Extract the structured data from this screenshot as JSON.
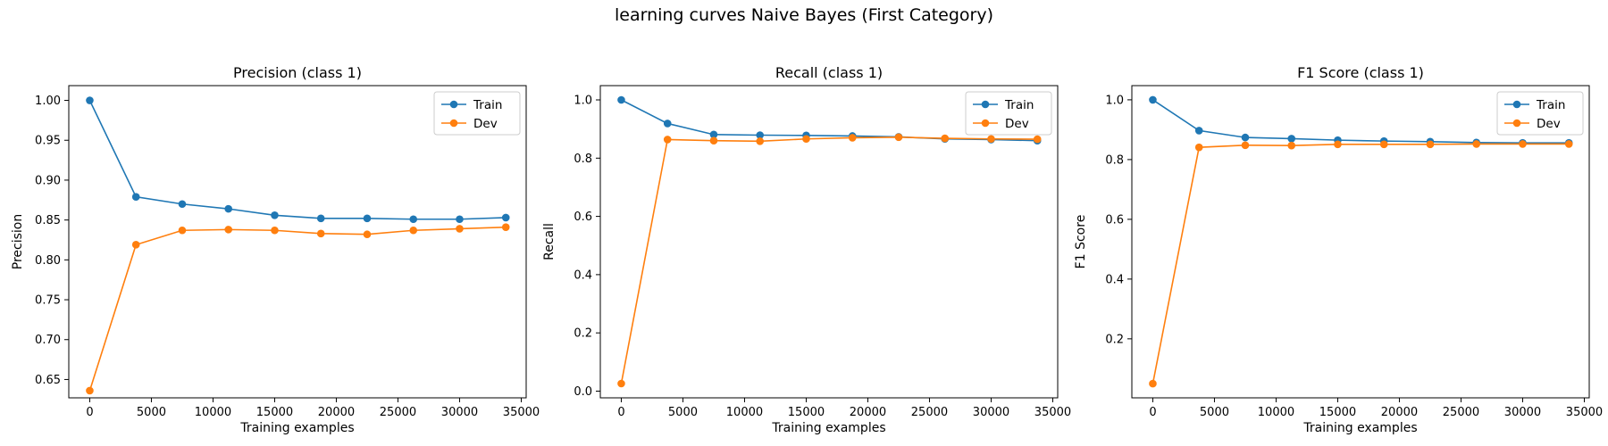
{
  "figure": {
    "title": "learning curves Naive Bayes (First Category)"
  },
  "chart_data": [
    {
      "type": "line",
      "title": "Precision (class 1)",
      "xlabel": "Training examples",
      "ylabel": "Precision",
      "x": [
        0,
        3750,
        7500,
        11250,
        15000,
        18750,
        22500,
        26250,
        30000,
        33750
      ],
      "xlim": [
        -1700,
        35400
      ],
      "ylim": [
        0.627,
        1.0185
      ],
      "xticks": [
        0,
        5000,
        10000,
        15000,
        20000,
        25000,
        30000,
        35000
      ],
      "yticks": [
        0.65,
        0.7,
        0.75,
        0.8,
        0.85,
        0.9,
        0.95,
        1.0
      ],
      "ytick_labels": [
        "0.65",
        "0.70",
        "0.75",
        "0.80",
        "0.85",
        "0.90",
        "0.95",
        "1.00"
      ],
      "grid": false,
      "legend": "top-right",
      "series": [
        {
          "name": "Train",
          "color": "#1f77b4",
          "values": [
            1.0,
            0.879,
            0.87,
            0.864,
            0.856,
            0.852,
            0.852,
            0.851,
            0.851,
            0.853
          ]
        },
        {
          "name": "Dev",
          "color": "#ff7f0e",
          "values": [
            0.636,
            0.819,
            0.837,
            0.838,
            0.837,
            0.833,
            0.832,
            0.837,
            0.839,
            0.841
          ]
        }
      ]
    },
    {
      "type": "line",
      "title": "Recall (class 1)",
      "xlabel": "Training examples",
      "ylabel": "Recall",
      "x": [
        0,
        3750,
        7500,
        11250,
        15000,
        18750,
        22500,
        26250,
        30000,
        33750
      ],
      "xlim": [
        -1700,
        35400
      ],
      "ylim": [
        -0.023,
        1.049
      ],
      "xticks": [
        0,
        5000,
        10000,
        15000,
        20000,
        25000,
        30000,
        35000
      ],
      "yticks": [
        0.0,
        0.2,
        0.4,
        0.6,
        0.8,
        1.0
      ],
      "ytick_labels": [
        "0.0",
        "0.2",
        "0.4",
        "0.6",
        "0.8",
        "1.0"
      ],
      "grid": false,
      "legend": "top-right",
      "series": [
        {
          "name": "Train",
          "color": "#1f77b4",
          "values": [
            1.0,
            0.919,
            0.881,
            0.879,
            0.878,
            0.876,
            0.873,
            0.866,
            0.864,
            0.86
          ]
        },
        {
          "name": "Dev",
          "color": "#ff7f0e",
          "values": [
            0.026,
            0.864,
            0.86,
            0.858,
            0.866,
            0.87,
            0.872,
            0.868,
            0.866,
            0.865
          ]
        }
      ]
    },
    {
      "type": "line",
      "title": "F1 Score (class 1)",
      "xlabel": "Training examples",
      "ylabel": "F1 Score",
      "x": [
        0,
        3750,
        7500,
        11250,
        15000,
        18750,
        22500,
        26250,
        30000,
        33750
      ],
      "xlim": [
        -1700,
        35400
      ],
      "ylim": [
        0.0025,
        1.0475
      ],
      "xticks": [
        0,
        5000,
        10000,
        15000,
        20000,
        25000,
        30000,
        35000
      ],
      "yticks": [
        0.2,
        0.4,
        0.6,
        0.8,
        1.0
      ],
      "ytick_labels": [
        "0.2",
        "0.4",
        "0.6",
        "0.8",
        "1.0"
      ],
      "grid": false,
      "legend": "top-right",
      "series": [
        {
          "name": "Train",
          "color": "#1f77b4",
          "values": [
            1.0,
            0.897,
            0.874,
            0.87,
            0.865,
            0.862,
            0.86,
            0.857,
            0.856,
            0.856
          ]
        },
        {
          "name": "Dev",
          "color": "#ff7f0e",
          "values": [
            0.05,
            0.841,
            0.848,
            0.847,
            0.851,
            0.851,
            0.851,
            0.852,
            0.852,
            0.852
          ]
        }
      ]
    }
  ]
}
